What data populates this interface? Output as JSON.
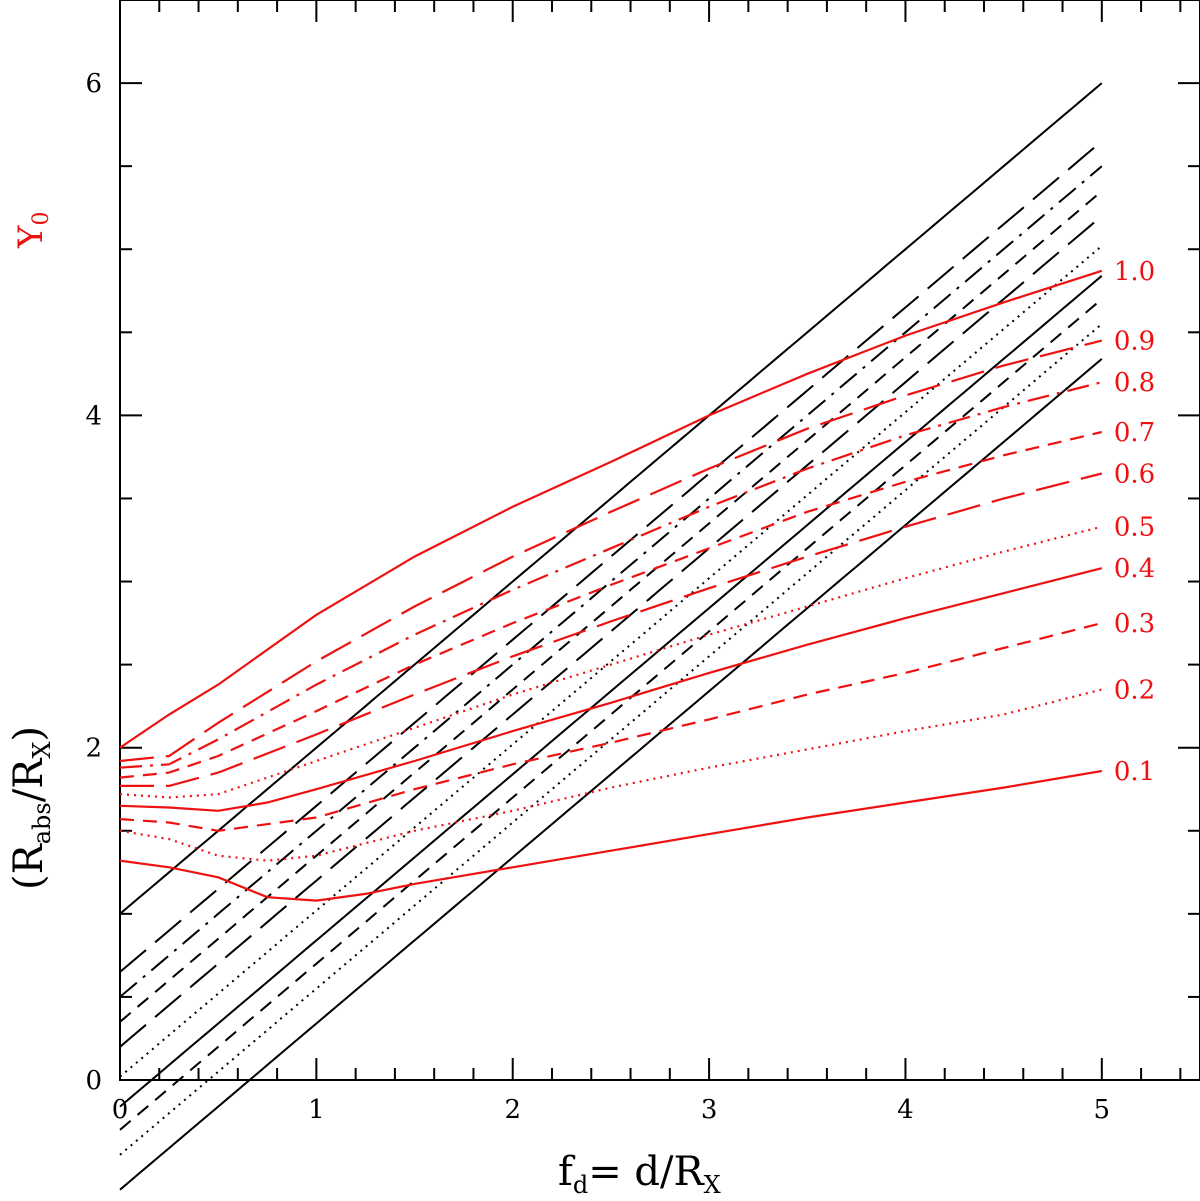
{
  "chart_data": {
    "type": "line",
    "title": "",
    "xlabel": {
      "main": "f",
      "sub": "d",
      "rest": "=  d/R",
      "rest_sub": "X"
    },
    "ylabel": {
      "open": "(R",
      "sub1": "abs",
      "mid": "/R",
      "sub2": "X",
      "close": ")"
    },
    "y2label": {
      "main": "Y",
      "sub": "0"
    },
    "xlim": [
      0,
      5.5
    ],
    "ylim": [
      0,
      6.5
    ],
    "x_ticks": [
      "0",
      "1",
      "2",
      "3",
      "4",
      "5"
    ],
    "y_ticks": [
      "0",
      "2",
      "4",
      "6"
    ],
    "colors": {
      "black": "#000000",
      "red": "#ee1111"
    },
    "red_series": [
      {
        "name": "1.0",
        "style": "solid",
        "points": [
          [
            0,
            2.0
          ],
          [
            0.25,
            2.2
          ],
          [
            0.5,
            2.38
          ],
          [
            1,
            2.8
          ],
          [
            1.5,
            3.15
          ],
          [
            2,
            3.45
          ],
          [
            2.5,
            3.72
          ],
          [
            3,
            4.0
          ],
          [
            3.5,
            4.25
          ],
          [
            4,
            4.48
          ],
          [
            4.5,
            4.68
          ],
          [
            5,
            4.87
          ]
        ]
      },
      {
        "name": "0.9",
        "style": "longdash",
        "points": [
          [
            0,
            1.92
          ],
          [
            0.25,
            1.95
          ],
          [
            0.5,
            2.15
          ],
          [
            1,
            2.52
          ],
          [
            1.5,
            2.85
          ],
          [
            2,
            3.15
          ],
          [
            2.5,
            3.42
          ],
          [
            3,
            3.68
          ],
          [
            3.5,
            3.92
          ],
          [
            4,
            4.12
          ],
          [
            4.5,
            4.3
          ],
          [
            5,
            4.45
          ]
        ]
      },
      {
        "name": "0.8",
        "style": "dashdot",
        "points": [
          [
            0,
            1.88
          ],
          [
            0.25,
            1.9
          ],
          [
            0.5,
            2.05
          ],
          [
            1,
            2.38
          ],
          [
            1.5,
            2.68
          ],
          [
            2,
            2.95
          ],
          [
            2.5,
            3.2
          ],
          [
            3,
            3.45
          ],
          [
            3.5,
            3.68
          ],
          [
            4,
            3.88
          ],
          [
            4.5,
            4.05
          ],
          [
            5,
            4.2
          ]
        ]
      },
      {
        "name": "0.7",
        "style": "shortdash",
        "points": [
          [
            0,
            1.82
          ],
          [
            0.25,
            1.85
          ],
          [
            0.5,
            1.95
          ],
          [
            1,
            2.22
          ],
          [
            1.5,
            2.5
          ],
          [
            2,
            2.75
          ],
          [
            2.5,
            2.98
          ],
          [
            3,
            3.2
          ],
          [
            3.5,
            3.42
          ],
          [
            4,
            3.6
          ],
          [
            4.5,
            3.76
          ],
          [
            5,
            3.9
          ]
        ]
      },
      {
        "name": "0.6",
        "style": "longdash",
        "points": [
          [
            0,
            1.77
          ],
          [
            0.25,
            1.77
          ],
          [
            0.5,
            1.85
          ],
          [
            1,
            2.08
          ],
          [
            1.5,
            2.32
          ],
          [
            2,
            2.55
          ],
          [
            2.5,
            2.76
          ],
          [
            3,
            2.96
          ],
          [
            3.5,
            3.15
          ],
          [
            4,
            3.33
          ],
          [
            4.5,
            3.5
          ],
          [
            5,
            3.65
          ]
        ]
      },
      {
        "name": "0.5",
        "style": "dotted",
        "points": [
          [
            0,
            1.72
          ],
          [
            0.25,
            1.7
          ],
          [
            0.5,
            1.72
          ],
          [
            1,
            1.92
          ],
          [
            1.5,
            2.12
          ],
          [
            2,
            2.32
          ],
          [
            2.5,
            2.5
          ],
          [
            3,
            2.68
          ],
          [
            3.5,
            2.85
          ],
          [
            4,
            3.02
          ],
          [
            4.5,
            3.18
          ],
          [
            5,
            3.33
          ]
        ]
      },
      {
        "name": "0.4",
        "style": "solid",
        "points": [
          [
            0,
            1.65
          ],
          [
            0.25,
            1.64
          ],
          [
            0.5,
            1.62
          ],
          [
            0.75,
            1.67
          ],
          [
            1,
            1.75
          ],
          [
            1.5,
            1.92
          ],
          [
            2,
            2.1
          ],
          [
            2.5,
            2.27
          ],
          [
            3,
            2.45
          ],
          [
            3.5,
            2.62
          ],
          [
            4,
            2.78
          ],
          [
            4.5,
            2.93
          ],
          [
            5,
            3.08
          ]
        ]
      },
      {
        "name": "0.3",
        "style": "shortdash",
        "points": [
          [
            0,
            1.57
          ],
          [
            0.25,
            1.55
          ],
          [
            0.5,
            1.5
          ],
          [
            1,
            1.58
          ],
          [
            1.5,
            1.75
          ],
          [
            2,
            1.9
          ],
          [
            2.5,
            2.03
          ],
          [
            3,
            2.17
          ],
          [
            3.5,
            2.32
          ],
          [
            4,
            2.45
          ],
          [
            4.5,
            2.6
          ],
          [
            5,
            2.75
          ]
        ]
      },
      {
        "name": "0.2",
        "style": "dotted",
        "points": [
          [
            0,
            1.5
          ],
          [
            0.25,
            1.45
          ],
          [
            0.5,
            1.35
          ],
          [
            0.75,
            1.32
          ],
          [
            1,
            1.35
          ],
          [
            1.5,
            1.5
          ],
          [
            2,
            1.62
          ],
          [
            2.5,
            1.76
          ],
          [
            3,
            1.88
          ],
          [
            3.5,
            1.99
          ],
          [
            4,
            2.1
          ],
          [
            4.5,
            2.2
          ],
          [
            5,
            2.35
          ]
        ]
      },
      {
        "name": "0.1",
        "style": "solid",
        "points": [
          [
            0,
            1.32
          ],
          [
            0.25,
            1.28
          ],
          [
            0.5,
            1.22
          ],
          [
            0.75,
            1.1
          ],
          [
            1,
            1.08
          ],
          [
            1.25,
            1.12
          ],
          [
            1.5,
            1.18
          ],
          [
            2,
            1.28
          ],
          [
            2.5,
            1.38
          ],
          [
            3,
            1.48
          ],
          [
            3.5,
            1.58
          ],
          [
            4,
            1.67
          ],
          [
            4.5,
            1.76
          ],
          [
            5,
            1.86
          ]
        ]
      }
    ],
    "black_series": [
      {
        "style": "solid",
        "flat": 1.0,
        "end": 6.0
      },
      {
        "style": "longdash",
        "flat": 0.95,
        "end": 5.65
      },
      {
        "style": "dashdot",
        "flat": 0.9,
        "end": 5.5
      },
      {
        "style": "shortdash",
        "flat": 0.86,
        "end": 5.35
      },
      {
        "style": "longdash",
        "flat": 0.8,
        "end": 5.2
      },
      {
        "style": "dotted",
        "flat": 0.72,
        "end": 5.02
      },
      {
        "style": "solid",
        "flat": 0.64,
        "end": 4.84
      },
      {
        "style": "shortdash",
        "flat": 0.55,
        "end": 4.7
      },
      {
        "style": "dotted",
        "flat": 0.45,
        "end": 4.55
      },
      {
        "style": "solid",
        "flat": 0.32,
        "end": 4.34
      }
    ]
  }
}
